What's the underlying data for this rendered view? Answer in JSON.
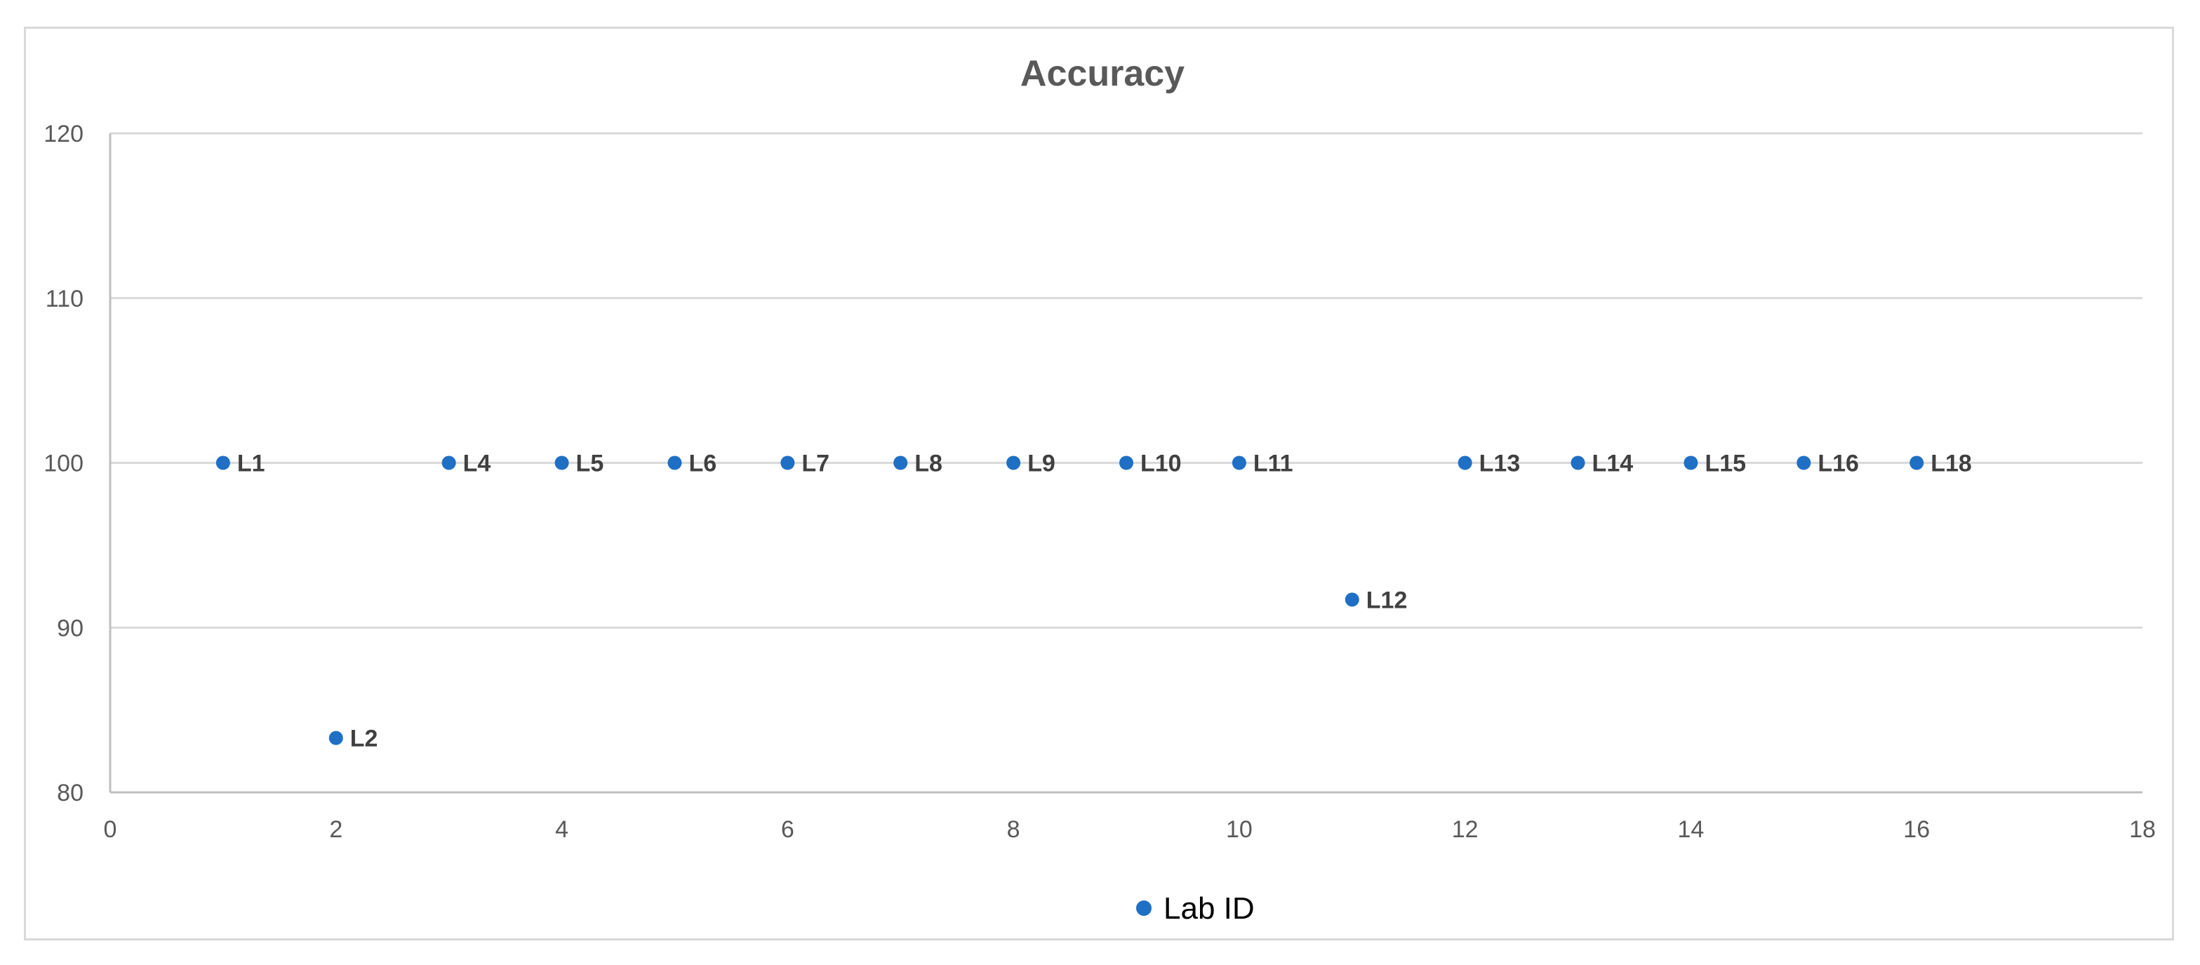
{
  "chart_data": {
    "type": "scatter",
    "title": "Accuracy",
    "xlabel": "",
    "ylabel": "",
    "xlim": [
      0,
      18
    ],
    "ylim": [
      80,
      120
    ],
    "x_ticks": [
      0,
      2,
      4,
      6,
      8,
      10,
      12,
      14,
      16,
      18
    ],
    "y_ticks": [
      80,
      90,
      100,
      110,
      120
    ],
    "grid": "horizontal",
    "legend": {
      "position": "bottom",
      "entries": [
        "Lab ID"
      ]
    },
    "series": [
      {
        "name": "Lab ID",
        "color": "#1f6fc5",
        "points": [
          {
            "x": 1,
            "y": 100,
            "label": "L1"
          },
          {
            "x": 2,
            "y": 83.3,
            "label": "L2"
          },
          {
            "x": 3,
            "y": 100,
            "label": "L4"
          },
          {
            "x": 4,
            "y": 100,
            "label": "L5"
          },
          {
            "x": 5,
            "y": 100,
            "label": "L6"
          },
          {
            "x": 6,
            "y": 100,
            "label": "L7"
          },
          {
            "x": 7,
            "y": 100,
            "label": "L8"
          },
          {
            "x": 8,
            "y": 100,
            "label": "L9"
          },
          {
            "x": 9,
            "y": 100,
            "label": "L10"
          },
          {
            "x": 10,
            "y": 100,
            "label": "L11"
          },
          {
            "x": 11,
            "y": 91.7,
            "label": "L12"
          },
          {
            "x": 12,
            "y": 100,
            "label": "L13"
          },
          {
            "x": 13,
            "y": 100,
            "label": "L14"
          },
          {
            "x": 14,
            "y": 100,
            "label": "L15"
          },
          {
            "x": 15,
            "y": 100,
            "label": "L16"
          },
          {
            "x": 16,
            "y": 100,
            "label": "L18"
          }
        ]
      }
    ]
  }
}
